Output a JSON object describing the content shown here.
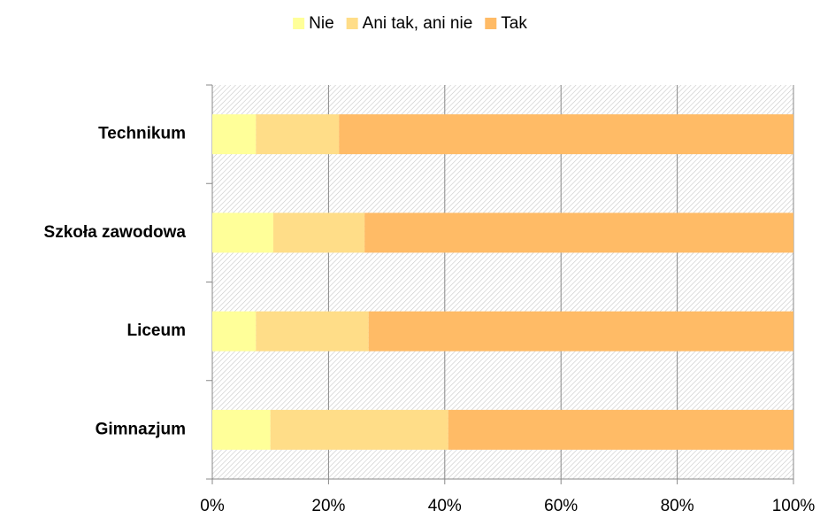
{
  "chart_data": {
    "type": "stacked_barh",
    "categories": [
      "Technikum",
      "Szkoła zawodowa",
      "Liceum",
      "Gimnazjum"
    ],
    "series": [
      {
        "name": "Nie",
        "color": "#ffff99",
        "values": [
          7.5,
          10.5,
          7.5,
          10.0
        ]
      },
      {
        "name": "Ani tak, ani nie",
        "color": "#ffdd88",
        "values": [
          14.3,
          15.7,
          19.4,
          30.6
        ]
      },
      {
        "name": "Tak",
        "color": "#ffbb66",
        "values": [
          78.2,
          73.8,
          73.1,
          59.4
        ]
      }
    ],
    "xlim": [
      0,
      100
    ],
    "xticks": [
      {
        "value": 0,
        "label": "0%"
      },
      {
        "value": 20,
        "label": "20%"
      },
      {
        "value": 40,
        "label": "40%"
      },
      {
        "value": 60,
        "label": "60%"
      },
      {
        "value": 80,
        "label": "80%"
      },
      {
        "value": 100,
        "label": "100%"
      }
    ],
    "grid": true,
    "legend": "top"
  }
}
